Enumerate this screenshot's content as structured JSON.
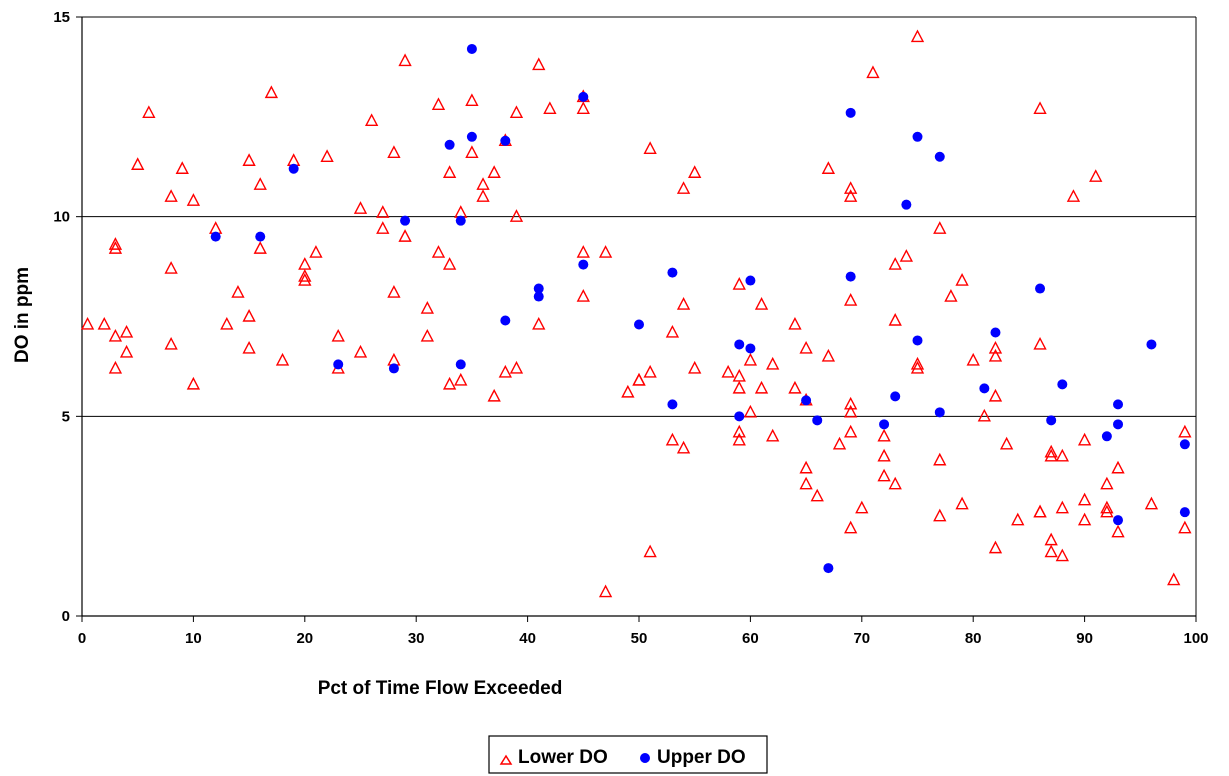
{
  "chart_data": {
    "type": "scatter",
    "title": "",
    "xlabel": "Pct of Time Flow Exceeded",
    "ylabel": "DO in ppm",
    "xlim": [
      0,
      100
    ],
    "ylim": [
      0,
      15
    ],
    "xticks": [
      0,
      10,
      20,
      30,
      40,
      50,
      60,
      70,
      80,
      90,
      100
    ],
    "yticks": [
      0,
      5,
      10,
      15
    ],
    "grid": "horizontal major gridlines at 5 and 10",
    "legend_position": "bottom-center",
    "series": [
      {
        "name": "Lower DO",
        "marker": "triangle-open",
        "color": "#ff0000",
        "points": [
          [
            0.5,
            7.3
          ],
          [
            2,
            7.3
          ],
          [
            3,
            9.3
          ],
          [
            3,
            9.2
          ],
          [
            3,
            7.0
          ],
          [
            3,
            6.2
          ],
          [
            4,
            7.1
          ],
          [
            4,
            6.6
          ],
          [
            5,
            11.3
          ],
          [
            6,
            12.6
          ],
          [
            8,
            10.5
          ],
          [
            8,
            8.7
          ],
          [
            8,
            6.8
          ],
          [
            9,
            11.2
          ],
          [
            10,
            10.4
          ],
          [
            10,
            5.8
          ],
          [
            12,
            9.7
          ],
          [
            13,
            7.3
          ],
          [
            14,
            8.1
          ],
          [
            15,
            11.4
          ],
          [
            15,
            7.5
          ],
          [
            15,
            6.7
          ],
          [
            16,
            10.8
          ],
          [
            16,
            9.2
          ],
          [
            17,
            13.1
          ],
          [
            18,
            6.4
          ],
          [
            19,
            11.4
          ],
          [
            20,
            8.8
          ],
          [
            20,
            8.5
          ],
          [
            20,
            8.4
          ],
          [
            21,
            9.1
          ],
          [
            22,
            11.5
          ],
          [
            23,
            7.0
          ],
          [
            23,
            6.2
          ],
          [
            25,
            10.2
          ],
          [
            25,
            6.6
          ],
          [
            26,
            12.4
          ],
          [
            27,
            10.1
          ],
          [
            27,
            9.7
          ],
          [
            28,
            11.6
          ],
          [
            28,
            8.1
          ],
          [
            28,
            6.4
          ],
          [
            29,
            13.9
          ],
          [
            29,
            9.5
          ],
          [
            31,
            7.7
          ],
          [
            31,
            7.0
          ],
          [
            32,
            12.8
          ],
          [
            32,
            9.1
          ],
          [
            33,
            11.1
          ],
          [
            33,
            8.8
          ],
          [
            33,
            5.8
          ],
          [
            34,
            10.1
          ],
          [
            34,
            5.9
          ],
          [
            35,
            12.9
          ],
          [
            35,
            11.6
          ],
          [
            36,
            10.8
          ],
          [
            36,
            10.5
          ],
          [
            37,
            11.1
          ],
          [
            37,
            5.5
          ],
          [
            38,
            11.9
          ],
          [
            38,
            6.1
          ],
          [
            39,
            12.6
          ],
          [
            39,
            10.0
          ],
          [
            39,
            6.2
          ],
          [
            41,
            13.8
          ],
          [
            41,
            7.3
          ],
          [
            42,
            12.7
          ],
          [
            45,
            13.0
          ],
          [
            45,
            12.7
          ],
          [
            45,
            9.1
          ],
          [
            45,
            8.0
          ],
          [
            47,
            9.1
          ],
          [
            47,
            0.6
          ],
          [
            49,
            5.6
          ],
          [
            50,
            5.9
          ],
          [
            50,
            5.9
          ],
          [
            51,
            11.7
          ],
          [
            51,
            6.1
          ],
          [
            51,
            1.6
          ],
          [
            53,
            7.1
          ],
          [
            53,
            4.4
          ],
          [
            54,
            10.7
          ],
          [
            54,
            7.8
          ],
          [
            54,
            4.2
          ],
          [
            55,
            11.1
          ],
          [
            55,
            6.2
          ],
          [
            58,
            6.1
          ],
          [
            59,
            8.3
          ],
          [
            59,
            6.0
          ],
          [
            59,
            5.7
          ],
          [
            59,
            4.6
          ],
          [
            59,
            4.4
          ],
          [
            60,
            6.4
          ],
          [
            60,
            5.1
          ],
          [
            61,
            7.8
          ],
          [
            61,
            5.7
          ],
          [
            62,
            6.3
          ],
          [
            62,
            4.5
          ],
          [
            64,
            7.3
          ],
          [
            64,
            5.7
          ],
          [
            65,
            6.7
          ],
          [
            65,
            5.4
          ],
          [
            65,
            3.7
          ],
          [
            65,
            3.3
          ],
          [
            66,
            3.0
          ],
          [
            67,
            11.2
          ],
          [
            67,
            6.5
          ],
          [
            68,
            4.3
          ],
          [
            69,
            10.7
          ],
          [
            69,
            10.5
          ],
          [
            69,
            7.9
          ],
          [
            69,
            5.3
          ],
          [
            69,
            5.1
          ],
          [
            69,
            4.6
          ],
          [
            69,
            2.2
          ],
          [
            70,
            2.7
          ],
          [
            71,
            13.6
          ],
          [
            72,
            4.5
          ],
          [
            72,
            4.0
          ],
          [
            72,
            3.5
          ],
          [
            73,
            8.8
          ],
          [
            73,
            7.4
          ],
          [
            73,
            3.3
          ],
          [
            74,
            9.0
          ],
          [
            75,
            14.5
          ],
          [
            75,
            6.3
          ],
          [
            75,
            6.2
          ],
          [
            77,
            9.7
          ],
          [
            77,
            3.9
          ],
          [
            77,
            2.5
          ],
          [
            78,
            8.0
          ],
          [
            79,
            8.4
          ],
          [
            79,
            2.8
          ],
          [
            80,
            6.4
          ],
          [
            81,
            5.0
          ],
          [
            82,
            6.7
          ],
          [
            82,
            6.5
          ],
          [
            82,
            5.5
          ],
          [
            82,
            1.7
          ],
          [
            83,
            4.3
          ],
          [
            84,
            2.4
          ],
          [
            86,
            12.7
          ],
          [
            86,
            6.8
          ],
          [
            86,
            2.6
          ],
          [
            86,
            2.6
          ],
          [
            87,
            4.1
          ],
          [
            87,
            4.0
          ],
          [
            87,
            1.9
          ],
          [
            87,
            1.6
          ],
          [
            88,
            4.0
          ],
          [
            88,
            2.7
          ],
          [
            88,
            1.5
          ],
          [
            89,
            10.5
          ],
          [
            90,
            4.4
          ],
          [
            90,
            2.9
          ],
          [
            90,
            2.4
          ],
          [
            91,
            11.0
          ],
          [
            92,
            3.3
          ],
          [
            92,
            2.7
          ],
          [
            92,
            2.6
          ],
          [
            93,
            3.7
          ],
          [
            93,
            2.1
          ],
          [
            96,
            2.8
          ],
          [
            98,
            0.9
          ],
          [
            99,
            4.6
          ],
          [
            99,
            2.2
          ]
        ]
      },
      {
        "name": "Upper DO",
        "marker": "circle-filled",
        "color": "#0000ff",
        "points": [
          [
            12,
            9.5
          ],
          [
            16,
            9.5
          ],
          [
            19,
            11.2
          ],
          [
            23,
            6.3
          ],
          [
            28,
            6.2
          ],
          [
            29,
            9.9
          ],
          [
            33,
            11.8
          ],
          [
            34,
            9.9
          ],
          [
            34,
            6.3
          ],
          [
            35,
            14.2
          ],
          [
            35,
            12.0
          ],
          [
            38,
            11.9
          ],
          [
            38,
            7.4
          ],
          [
            41,
            8.2
          ],
          [
            41,
            8.0
          ],
          [
            45,
            13.0
          ],
          [
            45,
            8.8
          ],
          [
            50,
            7.3
          ],
          [
            53,
            8.6
          ],
          [
            53,
            5.3
          ],
          [
            59,
            6.8
          ],
          [
            59,
            5.0
          ],
          [
            60,
            8.4
          ],
          [
            60,
            6.7
          ],
          [
            65,
            5.4
          ],
          [
            66,
            4.9
          ],
          [
            67,
            1.2
          ],
          [
            69,
            12.6
          ],
          [
            69,
            8.5
          ],
          [
            72,
            4.8
          ],
          [
            73,
            5.5
          ],
          [
            74,
            10.3
          ],
          [
            75,
            12.0
          ],
          [
            75,
            6.9
          ],
          [
            77,
            11.5
          ],
          [
            77,
            5.1
          ],
          [
            81,
            5.7
          ],
          [
            82,
            7.1
          ],
          [
            86,
            8.2
          ],
          [
            87,
            4.9
          ],
          [
            88,
            5.8
          ],
          [
            92,
            4.5
          ],
          [
            93,
            5.3
          ],
          [
            93,
            4.8
          ],
          [
            93,
            2.4
          ],
          [
            96,
            6.8
          ],
          [
            99,
            4.3
          ],
          [
            99,
            2.6
          ]
        ]
      }
    ]
  }
}
